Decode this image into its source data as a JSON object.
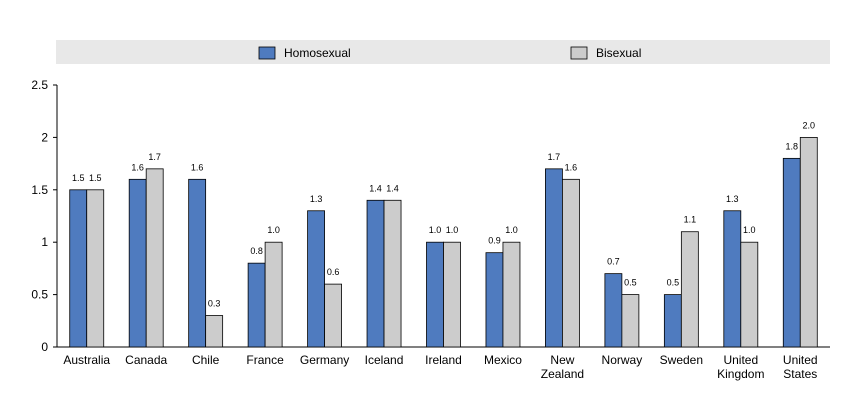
{
  "chart_data": {
    "type": "bar",
    "title": "",
    "xlabel": "",
    "ylabel": "",
    "ylim": [
      0,
      2.5
    ],
    "yticks": [
      "0",
      "0.5",
      "1",
      "1.5",
      "2",
      "2.5"
    ],
    "legend_position": "top",
    "grid": false,
    "categories": [
      [
        "Australia"
      ],
      [
        "Canada"
      ],
      [
        "Chile"
      ],
      [
        "France"
      ],
      [
        "Germany"
      ],
      [
        "Iceland"
      ],
      [
        "Ireland"
      ],
      [
        "Mexico"
      ],
      [
        "New",
        "Zealand"
      ],
      [
        "Norway"
      ],
      [
        "Sweden"
      ],
      [
        "United",
        "Kingdom"
      ],
      [
        "United",
        "States"
      ]
    ],
    "series": [
      {
        "name": "Homosexual",
        "color": "#4f7bbf",
        "values": [
          1.5,
          1.6,
          1.6,
          0.8,
          1.3,
          1.4,
          1.0,
          0.9,
          1.7,
          0.7,
          0.5,
          1.3,
          1.8
        ],
        "labels": [
          "1.5",
          "1.6",
          "1.6",
          "0.8",
          "1.3",
          "1.4",
          "1.0",
          "0.9",
          "1.7",
          "0.7",
          "0.5",
          "1.3",
          "1.8"
        ]
      },
      {
        "name": "Bisexual",
        "color": "#cccccc",
        "values": [
          1.5,
          1.7,
          0.3,
          1.0,
          0.6,
          1.4,
          1.0,
          1.0,
          1.6,
          0.5,
          1.1,
          1.0,
          2.0
        ],
        "labels": [
          "1.5",
          "1.7",
          "0.3",
          "1.0",
          "0.6",
          "1.4",
          "1.0",
          "1.0",
          "1.6",
          "0.5",
          "1.1",
          "1.0",
          "2.0"
        ]
      }
    ]
  }
}
